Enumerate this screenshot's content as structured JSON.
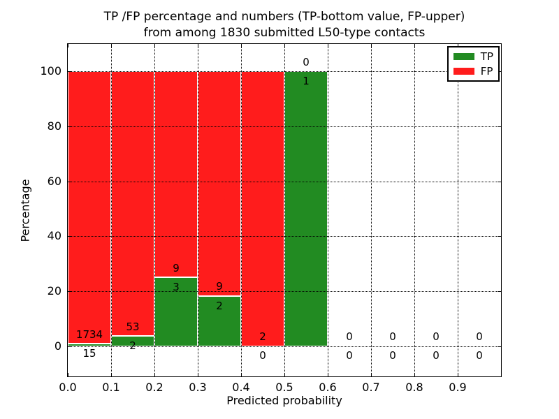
{
  "figure": {
    "title_line1": "TP /FP percentage and numbers (TP-bottom value, FP-upper)",
    "title_line2": "from among 1830 submitted L50-type contacts",
    "xlabel": "Predicted probability",
    "ylabel": "Percentage"
  },
  "legend": {
    "items": [
      {
        "label": "TP",
        "color": "#228b22"
      },
      {
        "label": "FP",
        "color": "#ff1c1c"
      }
    ]
  },
  "chart_data": {
    "type": "bar",
    "stacked": true,
    "title": "TP /FP percentage and numbers (TP-bottom value, FP-upper) from among 1830 submitted L50-type contacts",
    "xlabel": "Predicted probability",
    "ylabel": "Percentage",
    "total_submitted": 1830,
    "contact_type": "L50-type",
    "xlim": [
      0.0,
      1.0
    ],
    "ylim": [
      -11,
      110
    ],
    "grid": "dotted",
    "legend_position": "upper right",
    "x_ticks": [
      {
        "v": 0.0,
        "label": "0.0"
      },
      {
        "v": 0.1,
        "label": "0.1"
      },
      {
        "v": 0.2,
        "label": "0.2"
      },
      {
        "v": 0.3,
        "label": "0.3"
      },
      {
        "v": 0.4,
        "label": "0.4"
      },
      {
        "v": 0.5,
        "label": "0.5"
      },
      {
        "v": 0.6,
        "label": "0.6"
      },
      {
        "v": 0.7,
        "label": "0.7"
      },
      {
        "v": 0.8,
        "label": "0.8"
      },
      {
        "v": 0.9,
        "label": "0.9"
      }
    ],
    "y_ticks": [
      {
        "v": 0,
        "label": "0"
      },
      {
        "v": 20,
        "label": "20"
      },
      {
        "v": 40,
        "label": "40"
      },
      {
        "v": 60,
        "label": "60"
      },
      {
        "v": 80,
        "label": "80"
      },
      {
        "v": 100,
        "label": "100"
      }
    ],
    "series": [
      {
        "name": "TP",
        "color": "#228b22"
      },
      {
        "name": "FP",
        "color": "#ff1c1c"
      }
    ],
    "bins": [
      {
        "range": [
          0.0,
          0.1
        ],
        "tp_count": "15",
        "fp_count": "1734",
        "tp_pct": 0.86,
        "fp_pct": 99.14,
        "bar": true
      },
      {
        "range": [
          0.1,
          0.2
        ],
        "tp_count": "2",
        "fp_count": "53",
        "tp_pct": 3.64,
        "fp_pct": 96.36,
        "bar": true
      },
      {
        "range": [
          0.2,
          0.3
        ],
        "tp_count": "3",
        "fp_count": "9",
        "tp_pct": 25.0,
        "fp_pct": 75.0,
        "bar": true
      },
      {
        "range": [
          0.3,
          0.4
        ],
        "tp_count": "2",
        "fp_count": "9",
        "tp_pct": 18.18,
        "fp_pct": 81.82,
        "bar": true
      },
      {
        "range": [
          0.4,
          0.5
        ],
        "tp_count": "0",
        "fp_count": "2",
        "tp_pct": 0.0,
        "fp_pct": 100.0,
        "bar": true
      },
      {
        "range": [
          0.5,
          0.6
        ],
        "tp_count": "1",
        "fp_count": "0",
        "tp_pct": 100.0,
        "fp_pct": 0.0,
        "bar": true
      },
      {
        "range": [
          0.6,
          0.7
        ],
        "tp_count": "0",
        "fp_count": "0",
        "tp_pct": 0,
        "fp_pct": 0,
        "bar": false
      },
      {
        "range": [
          0.7,
          0.8
        ],
        "tp_count": "0",
        "fp_count": "0",
        "tp_pct": 0,
        "fp_pct": 0,
        "bar": false
      },
      {
        "range": [
          0.8,
          0.9
        ],
        "tp_count": "0",
        "fp_count": "0",
        "tp_pct": 0,
        "fp_pct": 0,
        "bar": false
      },
      {
        "range": [
          0.9,
          1.0
        ],
        "tp_count": "0",
        "fp_count": "0",
        "tp_pct": 0,
        "fp_pct": 0,
        "bar": false
      }
    ]
  }
}
